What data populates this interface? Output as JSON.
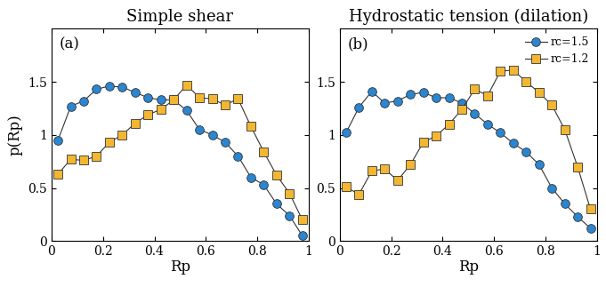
{
  "chart_data": [
    {
      "type": "line",
      "title": "Simple shear",
      "annotation": "(a)",
      "x_label": "Rp",
      "y_label": "p(Rp)",
      "x": [
        0.025,
        0.075,
        0.125,
        0.175,
        0.225,
        0.275,
        0.325,
        0.375,
        0.425,
        0.475,
        0.525,
        0.575,
        0.625,
        0.675,
        0.725,
        0.775,
        0.825,
        0.875,
        0.925,
        0.975
      ],
      "xlim": [
        0,
        1
      ],
      "xticks": [
        0,
        0.2,
        0.4,
        0.6,
        0.8,
        1
      ],
      "ylim": [
        0,
        2
      ],
      "yticks": [
        0,
        0.5,
        1,
        1.5
      ],
      "series": [
        {
          "name": "rc=1.5",
          "color": "#2a86d1",
          "marker": "o",
          "line_style": "solid",
          "values": [
            0.95,
            1.27,
            1.32,
            1.43,
            1.46,
            1.45,
            1.4,
            1.35,
            1.33,
            1.33,
            1.23,
            1.05,
            1.0,
            0.93,
            0.8,
            0.6,
            0.53,
            0.35,
            0.24,
            0.05
          ]
        },
        {
          "name": "rc=1.2",
          "color": "#f2b632",
          "marker": "s",
          "line_style": "solid",
          "values": [
            0.63,
            0.77,
            0.76,
            0.8,
            0.93,
            1.0,
            1.11,
            1.19,
            1.24,
            1.33,
            1.47,
            1.35,
            1.34,
            1.28,
            1.34,
            1.08,
            0.84,
            0.62,
            0.45,
            0.2
          ]
        }
      ]
    },
    {
      "type": "line",
      "title": "Hydrostatic tension (dilation)",
      "annotation": "(b)",
      "x_label": "Rp",
      "x": [
        0.025,
        0.075,
        0.125,
        0.175,
        0.225,
        0.275,
        0.325,
        0.375,
        0.425,
        0.475,
        0.525,
        0.575,
        0.625,
        0.675,
        0.725,
        0.775,
        0.825,
        0.875,
        0.925,
        0.975
      ],
      "xlim": [
        0,
        1
      ],
      "xticks": [
        0,
        0.2,
        0.4,
        0.6,
        0.8,
        1
      ],
      "ylim": [
        0,
        2
      ],
      "yticks": [
        0,
        0.5,
        1,
        1.5
      ],
      "legend": "upper right",
      "series": [
        {
          "name": "rc=1.5",
          "color": "#2a86d1",
          "marker": "o",
          "line_style": "solid",
          "values": [
            1.02,
            1.26,
            1.41,
            1.3,
            1.32,
            1.38,
            1.4,
            1.35,
            1.35,
            1.3,
            1.2,
            1.1,
            1.02,
            0.92,
            0.84,
            0.72,
            0.5,
            0.35,
            0.23,
            0.12
          ]
        },
        {
          "name": "rc=1.2",
          "color": "#f2b632",
          "marker": "s",
          "line_style": "solid",
          "values": [
            0.51,
            0.44,
            0.66,
            0.68,
            0.57,
            0.72,
            0.93,
            0.99,
            1.1,
            1.24,
            1.43,
            1.37,
            1.6,
            1.61,
            1.5,
            1.4,
            1.28,
            1.05,
            0.7,
            0.3
          ]
        }
      ]
    }
  ]
}
